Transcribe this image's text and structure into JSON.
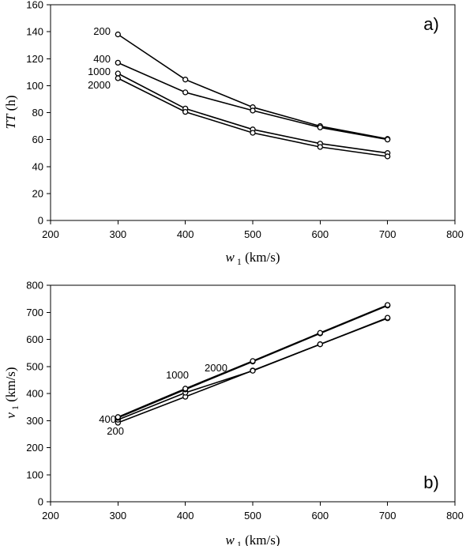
{
  "chart_data": [
    {
      "id": "a",
      "type": "line",
      "panel_label": "a)",
      "xlabel": {
        "var": "w",
        "sub": "1",
        "unit": "(km/s)"
      },
      "ylabel": {
        "var": "TT",
        "unit": "(h)"
      },
      "xlim": [
        200,
        800
      ],
      "ylim": [
        0,
        160
      ],
      "xticks": [
        200,
        300,
        400,
        500,
        600,
        700,
        800
      ],
      "yticks": [
        0,
        20,
        40,
        60,
        80,
        100,
        120,
        140,
        160
      ],
      "x": [
        300,
        400,
        500,
        600,
        700
      ],
      "series": [
        {
          "name": "200",
          "values": [
            138,
            104.5,
            84,
            70,
            60.5
          ]
        },
        {
          "name": "400",
          "values": [
            117,
            95,
            81.5,
            69,
            60
          ]
        },
        {
          "name": "1000",
          "values": [
            109,
            83,
            67.5,
            57,
            50
          ]
        },
        {
          "name": "2000",
          "values": [
            105.5,
            80.5,
            65,
            54.5,
            47.5
          ]
        }
      ]
    },
    {
      "id": "b",
      "type": "line",
      "panel_label": "b)",
      "xlabel": {
        "var": "w",
        "sub": "1",
        "unit": "(km/s)"
      },
      "ylabel": {
        "var": "v",
        "sub": "1",
        "unit": "(km/s)"
      },
      "xlim": [
        200,
        800
      ],
      "ylim": [
        0,
        800
      ],
      "xticks": [
        200,
        300,
        400,
        500,
        600,
        700,
        800
      ],
      "yticks": [
        0,
        100,
        200,
        300,
        400,
        500,
        600,
        700,
        800
      ],
      "x": [
        300,
        400,
        500,
        600,
        700
      ],
      "series": [
        {
          "name": "200",
          "values": [
            292,
            388,
            485,
            582,
            678
          ]
        },
        {
          "name": "400",
          "values": [
            303,
            403,
            484,
            582,
            680
          ]
        },
        {
          "name": "1000",
          "values": [
            310,
            415,
            518,
            622,
            725
          ]
        },
        {
          "name": "2000",
          "values": [
            313,
            418,
            520,
            624,
            727
          ]
        }
      ]
    }
  ]
}
